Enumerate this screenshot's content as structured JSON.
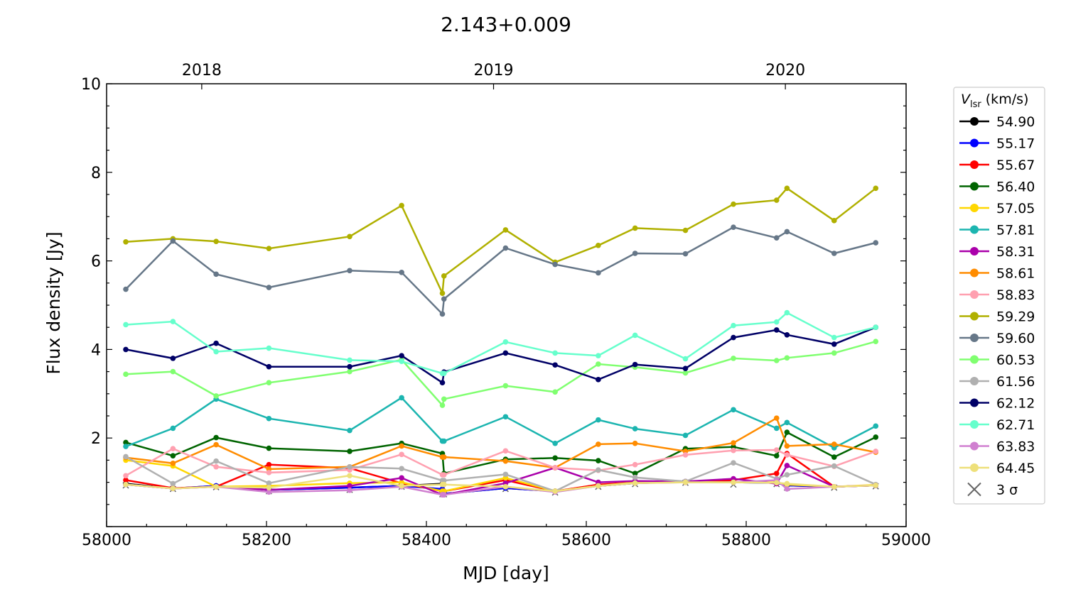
{
  "chart_data": {
    "type": "line",
    "title": "2.143+0.009",
    "xlabel": "MJD [day]",
    "ylabel": "Flux density [Jy]",
    "xlim": [
      58000,
      59000
    ],
    "ylim": [
      0,
      10
    ],
    "grid": false,
    "xticks": [
      58000,
      58200,
      58400,
      58600,
      58800,
      59000
    ],
    "xtick_labels": [
      "58000",
      "58200",
      "58400",
      "58600",
      "58800",
      "59000"
    ],
    "yticks": [
      2,
      4,
      6,
      8,
      10
    ],
    "ytick_labels": [
      "2",
      "4",
      "6",
      "8",
      "10"
    ],
    "top_axis": {
      "ticks": [
        58119,
        58484,
        58849
      ],
      "labels": [
        "2018",
        "2019",
        "2020"
      ]
    },
    "legend": {
      "position": "right-outside-top",
      "title_symbol": "V",
      "title_subscript": "lsr",
      "title_unit": "(km/s)",
      "sigma_label": "3 σ"
    },
    "x": [
      58024,
      58083,
      58137,
      58203,
      58304,
      58369,
      58420,
      58422,
      58499,
      58561,
      58615,
      58661,
      58724,
      58784,
      58838,
      58851,
      58910,
      58962
    ],
    "series": [
      {
        "name": "54.90",
        "color": "#000000",
        "values": [
          0.97,
          0.86,
          0.92,
          0.83,
          0.88,
          0.92,
          0.97,
          0.74,
          0.87,
          0.8,
          0.92,
          0.98,
          1.01,
          1.0,
          0.99,
          0.93,
          0.9,
          0.93
        ]
      },
      {
        "name": "55.17",
        "color": "#0000ff",
        "values": [
          0.95,
          0.86,
          0.92,
          0.83,
          0.88,
          0.92,
          0.85,
          0.74,
          0.87,
          0.8,
          0.92,
          0.98,
          1.01,
          1.0,
          0.99,
          0.93,
          0.9,
          0.93
        ]
      },
      {
        "name": "55.67",
        "color": "#ff0000",
        "values": [
          1.05,
          0.87,
          0.9,
          1.4,
          1.32,
          0.98,
          0.8,
          0.8,
          1.05,
          0.8,
          0.95,
          1.0,
          1.0,
          1.05,
          1.2,
          1.65,
          0.9,
          0.93
        ]
      },
      {
        "name": "56.40",
        "color": "#006400",
        "values": [
          1.9,
          1.6,
          2.01,
          1.77,
          1.7,
          1.88,
          1.65,
          1.2,
          1.52,
          1.55,
          1.49,
          1.2,
          1.76,
          1.8,
          1.6,
          2.13,
          1.57,
          2.02
        ]
      },
      {
        "name": "57.05",
        "color": "#ffd700",
        "values": [
          1.5,
          1.37,
          0.9,
          0.92,
          0.98,
          1.0,
          0.8,
          0.8,
          1.1,
          0.8,
          0.92,
          1.0,
          1.01,
          1.0,
          1.0,
          0.95,
          0.9,
          0.94
        ]
      },
      {
        "name": "57.81",
        "color": "#1cb5b0",
        "values": [
          1.81,
          2.22,
          2.88,
          2.44,
          2.17,
          2.91,
          1.93,
          1.93,
          2.48,
          1.88,
          2.41,
          2.21,
          2.06,
          2.64,
          2.22,
          2.35,
          1.78,
          2.27
        ]
      },
      {
        "name": "58.31",
        "color": "#aa00aa",
        "values": [
          0.95,
          0.86,
          0.9,
          0.83,
          0.92,
          1.1,
          0.72,
          0.72,
          0.98,
          1.33,
          1.0,
          1.03,
          1.02,
          1.08,
          0.97,
          1.38,
          0.9,
          0.93
        ]
      },
      {
        "name": "58.61",
        "color": "#ff8c00",
        "values": [
          1.56,
          1.43,
          1.85,
          1.3,
          1.35,
          1.82,
          1.57,
          1.57,
          1.48,
          1.33,
          1.86,
          1.88,
          1.7,
          1.89,
          2.45,
          1.82,
          1.86,
          1.68
        ]
      },
      {
        "name": "58.83",
        "color": "#ffa0b0",
        "values": [
          1.15,
          1.76,
          1.35,
          1.22,
          1.28,
          1.63,
          1.17,
          1.17,
          1.71,
          1.33,
          1.27,
          1.4,
          1.62,
          1.72,
          1.73,
          1.62,
          1.36,
          1.7
        ]
      },
      {
        "name": "59.29",
        "color": "#b0b000",
        "values": [
          6.43,
          6.5,
          6.44,
          6.28,
          6.55,
          7.25,
          5.27,
          5.66,
          6.7,
          5.97,
          6.35,
          6.74,
          6.69,
          7.28,
          7.37,
          7.64,
          6.91,
          7.64
        ]
      },
      {
        "name": "59.60",
        "color": "#667788",
        "values": [
          5.36,
          6.45,
          5.7,
          5.4,
          5.78,
          5.74,
          4.8,
          5.14,
          6.29,
          5.92,
          5.73,
          6.17,
          6.16,
          6.76,
          6.52,
          6.66,
          6.17,
          6.41
        ]
      },
      {
        "name": "60.53",
        "color": "#80ff70",
        "values": [
          3.44,
          3.5,
          2.95,
          3.25,
          3.5,
          3.77,
          2.74,
          2.88,
          3.18,
          3.04,
          3.67,
          3.6,
          3.47,
          3.8,
          3.75,
          3.81,
          3.92,
          4.18
        ]
      },
      {
        "name": "61.56",
        "color": "#b0b0b0",
        "values": [
          1.58,
          0.97,
          1.48,
          0.98,
          1.35,
          1.31,
          1.04,
          1.04,
          1.18,
          0.8,
          1.28,
          1.11,
          1.02,
          1.44,
          1.08,
          1.17,
          1.37,
          0.95
        ]
      },
      {
        "name": "62.12",
        "color": "#000066",
        "values": [
          4.0,
          3.8,
          4.14,
          3.61,
          3.61,
          3.86,
          3.25,
          3.49,
          3.92,
          3.65,
          3.32,
          3.66,
          3.57,
          4.27,
          4.44,
          4.33,
          4.12,
          4.5
        ]
      },
      {
        "name": "62.71",
        "color": "#66ffcc",
        "values": [
          4.56,
          4.63,
          3.95,
          4.03,
          3.76,
          3.73,
          3.46,
          3.46,
          4.17,
          3.92,
          3.86,
          4.32,
          3.79,
          4.54,
          4.62,
          4.83,
          4.27,
          4.5
        ]
      },
      {
        "name": "63.83",
        "color": "#d080d0",
        "values": [
          0.95,
          0.86,
          0.9,
          0.78,
          0.82,
          0.9,
          0.72,
          0.72,
          0.9,
          0.78,
          0.92,
          0.98,
          1.0,
          1.0,
          1.05,
          0.85,
          0.9,
          0.93
        ]
      },
      {
        "name": "64.45",
        "color": "#eee07a",
        "values": [
          0.95,
          0.86,
          0.9,
          0.88,
          1.15,
          0.92,
          0.95,
          0.95,
          0.9,
          0.8,
          0.92,
          0.98,
          1.0,
          1.0,
          0.99,
          0.97,
          0.9,
          0.93
        ]
      }
    ],
    "three_sigma": {
      "label": "3 σ",
      "values": [
        0.93,
        0.85,
        0.89,
        0.8,
        0.83,
        0.9,
        0.73,
        0.73,
        0.85,
        0.77,
        0.9,
        0.96,
        0.99,
        0.95,
        0.96,
        0.88,
        0.88,
        0.91
      ]
    }
  }
}
